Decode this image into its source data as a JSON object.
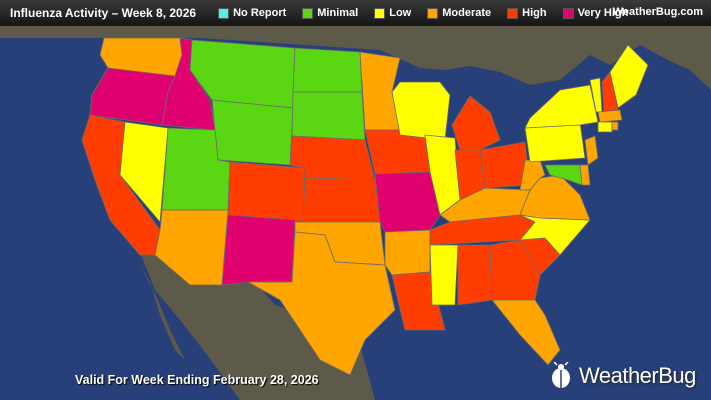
{
  "header": {
    "title": "Influenza Activity – Week 8, 2026",
    "brand_small": "WeatherBug.com"
  },
  "legend": [
    {
      "label": "No Report",
      "color": "#4ef0f4"
    },
    {
      "label": "Minimal",
      "color": "#5ad712"
    },
    {
      "label": "Low",
      "color": "#ffff00"
    },
    {
      "label": "Moderate",
      "color": "#ffa500"
    },
    {
      "label": "High",
      "color": "#ff3d00"
    },
    {
      "label": "Very High",
      "color": "#e0006f"
    }
  ],
  "footer": {
    "valid_text": "Valid For Week Ending February 28, 2026",
    "brand_name": "WeatherBug"
  },
  "map": {
    "land_color": "#5e5a4a",
    "ocean_color": "#27407a",
    "states": {
      "WA": "Moderate",
      "OR": "Very High",
      "CA": "High",
      "NV": "Low",
      "ID": "Very High",
      "MT": "Minimal",
      "WY": "Minimal",
      "UT": "Minimal",
      "AZ": "Moderate",
      "CO": "High",
      "NM": "Very High",
      "ND": "Minimal",
      "SD": "Minimal",
      "NE": "High",
      "KS": "High",
      "OK": "Moderate",
      "TX": "Moderate",
      "MN": "Moderate",
      "IA": "High",
      "MO": "Very High",
      "AR": "Moderate",
      "LA": "High",
      "WI": "Low",
      "IL": "Low",
      "MI": "High",
      "IN": "High",
      "OH": "High",
      "KY": "Moderate",
      "TN": "High",
      "MS": "Low",
      "AL": "High",
      "GA": "High",
      "FL": "Moderate",
      "SC": "High",
      "NC": "Low",
      "VA": "Moderate",
      "WV": "Moderate",
      "PA": "Low",
      "NY": "Low",
      "VT": "Low",
      "NH": "High",
      "ME": "Low",
      "MA": "Moderate",
      "CT": "Low",
      "RI": "Moderate",
      "NJ": "Moderate",
      "DE": "Moderate",
      "MD": "Minimal"
    }
  }
}
